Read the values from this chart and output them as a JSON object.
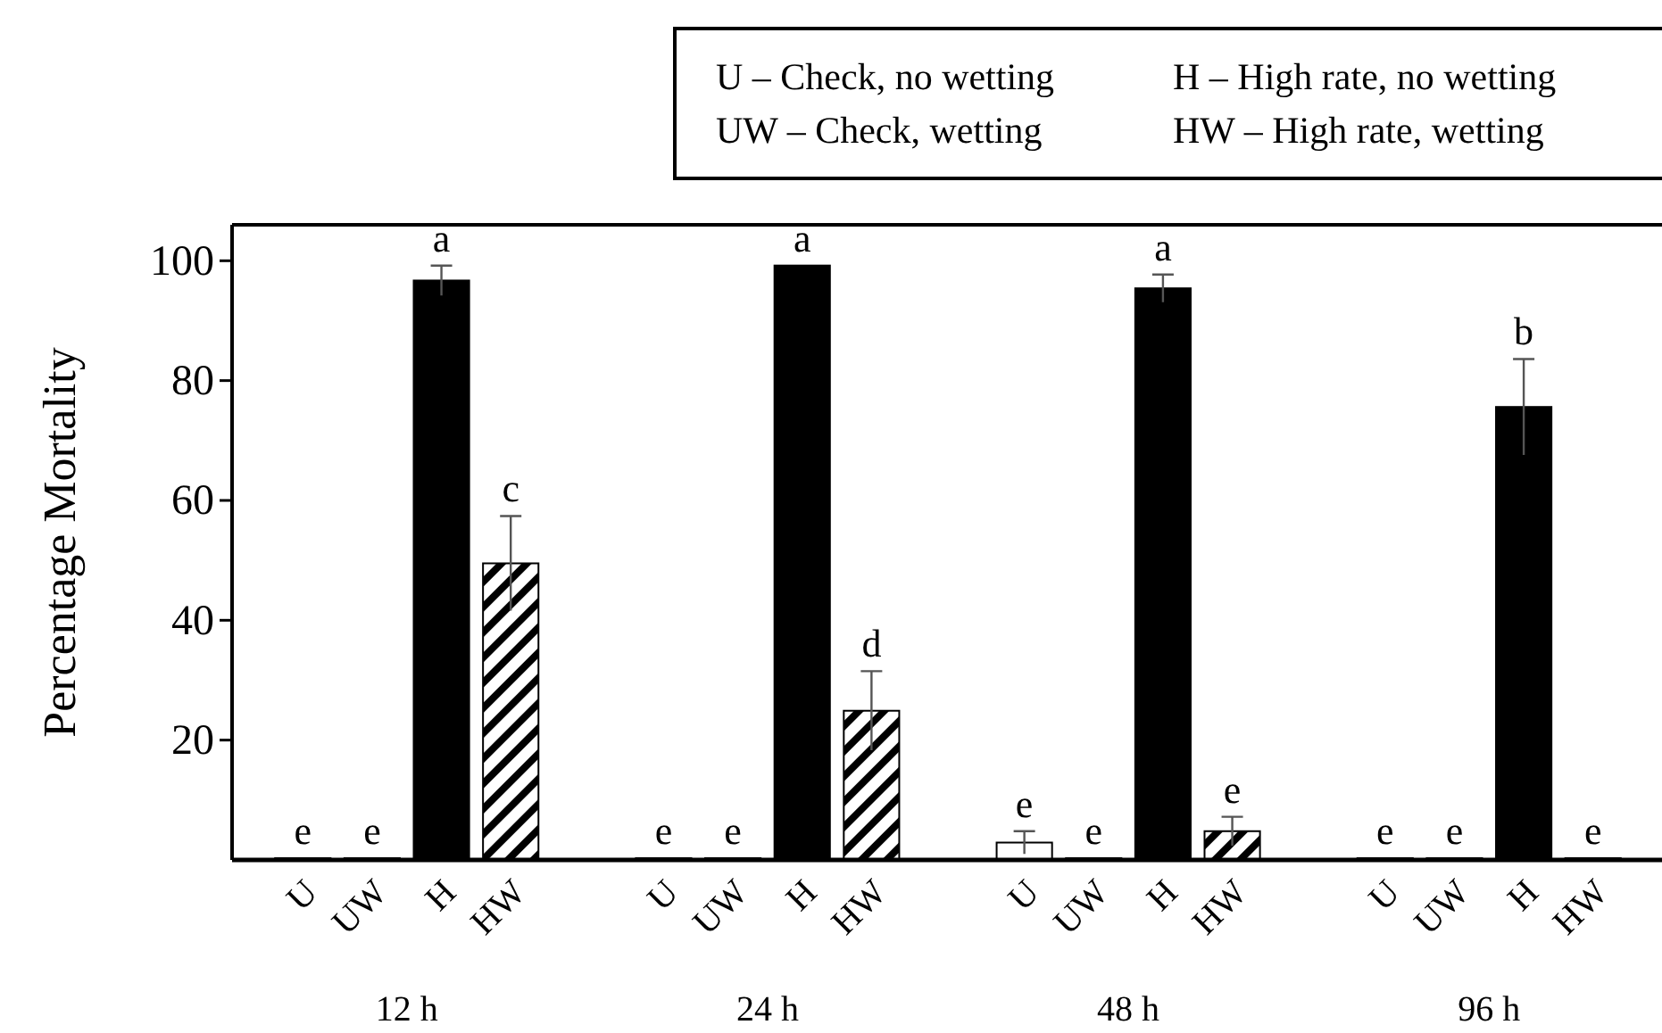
{
  "chart_data": {
    "type": "bar",
    "ylabel": "Percentage Mortality",
    "categories": [
      "12 h",
      "24 h",
      "48 h",
      "96 h"
    ],
    "series": [
      {
        "name": "U",
        "color": "#ffffff",
        "values": [
          0.3,
          0.3,
          2.9,
          0.3
        ],
        "errors": [
          null,
          null,
          1.9,
          null
        ],
        "value_labels": [
          "e",
          "e",
          "e",
          "e"
        ]
      },
      {
        "name": "UW",
        "color": "#ffffff",
        "values": [
          0.3,
          0.3,
          0.3,
          0.3
        ],
        "value_labels": [
          "e",
          "e",
          "e",
          "e"
        ]
      },
      {
        "name": "H",
        "color": "#000000",
        "values": [
          96.7,
          99.2,
          95.4,
          75.6
        ],
        "errors": [
          2.5,
          null,
          2.3,
          8
        ],
        "value_labels": [
          "a",
          "a",
          "a",
          "b"
        ]
      },
      {
        "name": "HW",
        "color": "#000000",
        "values": [
          49.5,
          24.9,
          4.8,
          0.3
        ],
        "errors": [
          7.9,
          6.6,
          2.4,
          null
        ],
        "value_labels": [
          "c",
          "d",
          "e",
          "e"
        ]
      }
    ],
    "ylim": [
      0,
      106
    ],
    "yticks": [
      20,
      40,
      60,
      80,
      100
    ],
    "annotations": [
      "U – Check, no wetting",
      "UW – Check, wetting",
      "H – High rate, no wetting",
      "HW – High rate, wetting"
    ]
  }
}
